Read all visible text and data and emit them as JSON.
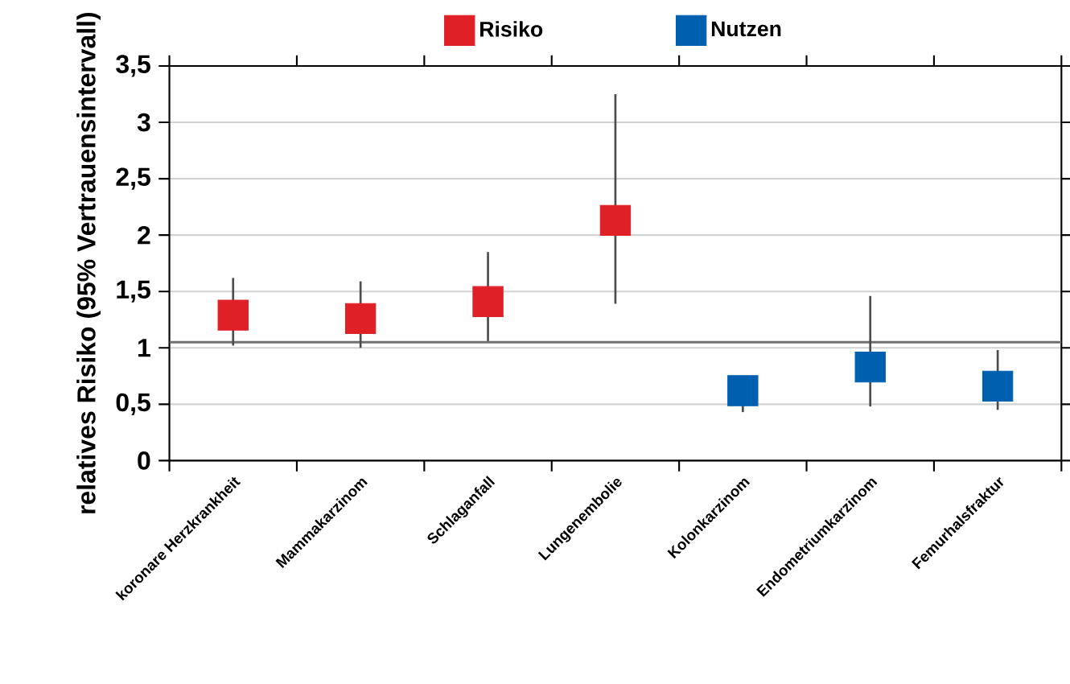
{
  "chart_data": {
    "type": "scatter",
    "ylabel": "relatives Risiko (95% Vertrauensintervall)",
    "categories": [
      "koronare Herzkrankheit",
      "Mammakarzinom",
      "Schlaganfall",
      "Lungenembolie",
      "Kolonkarzinom",
      "Endometriumkarzinom",
      "Femurhalsfraktur"
    ],
    "series": [
      {
        "name": "Risiko",
        "color": "#e02027",
        "values": [
          1.29,
          1.26,
          1.41,
          2.13,
          null,
          null,
          null
        ],
        "errors": [
          [
            1.02,
            1.62
          ],
          [
            1.0,
            1.59
          ],
          [
            1.06,
            1.85
          ],
          [
            1.39,
            3.25
          ],
          null,
          null,
          null
        ]
      },
      {
        "name": "Nutzen",
        "color": "#0060b0",
        "values": [
          null,
          null,
          null,
          null,
          0.62,
          0.83,
          0.66
        ],
        "errors": [
          null,
          null,
          null,
          null,
          [
            0.43,
            0.74
          ],
          [
            0.48,
            1.46
          ],
          [
            0.45,
            0.98
          ]
        ]
      }
    ],
    "ylim": [
      0,
      3.5
    ],
    "yticks": [
      0,
      {
        "value": 0.5,
        "label": "0,5"
      },
      1,
      {
        "value": 1.5,
        "label": "1,5"
      },
      2,
      {
        "value": 2.5,
        "label": "2,5"
      },
      3,
      {
        "value": 3.5,
        "label": "3,5"
      }
    ],
    "ref_lines": [
      {
        "axis": "y",
        "value": 1.05,
        "color": "#707070"
      }
    ],
    "grid": "y",
    "legend": "top",
    "marker": "square"
  }
}
